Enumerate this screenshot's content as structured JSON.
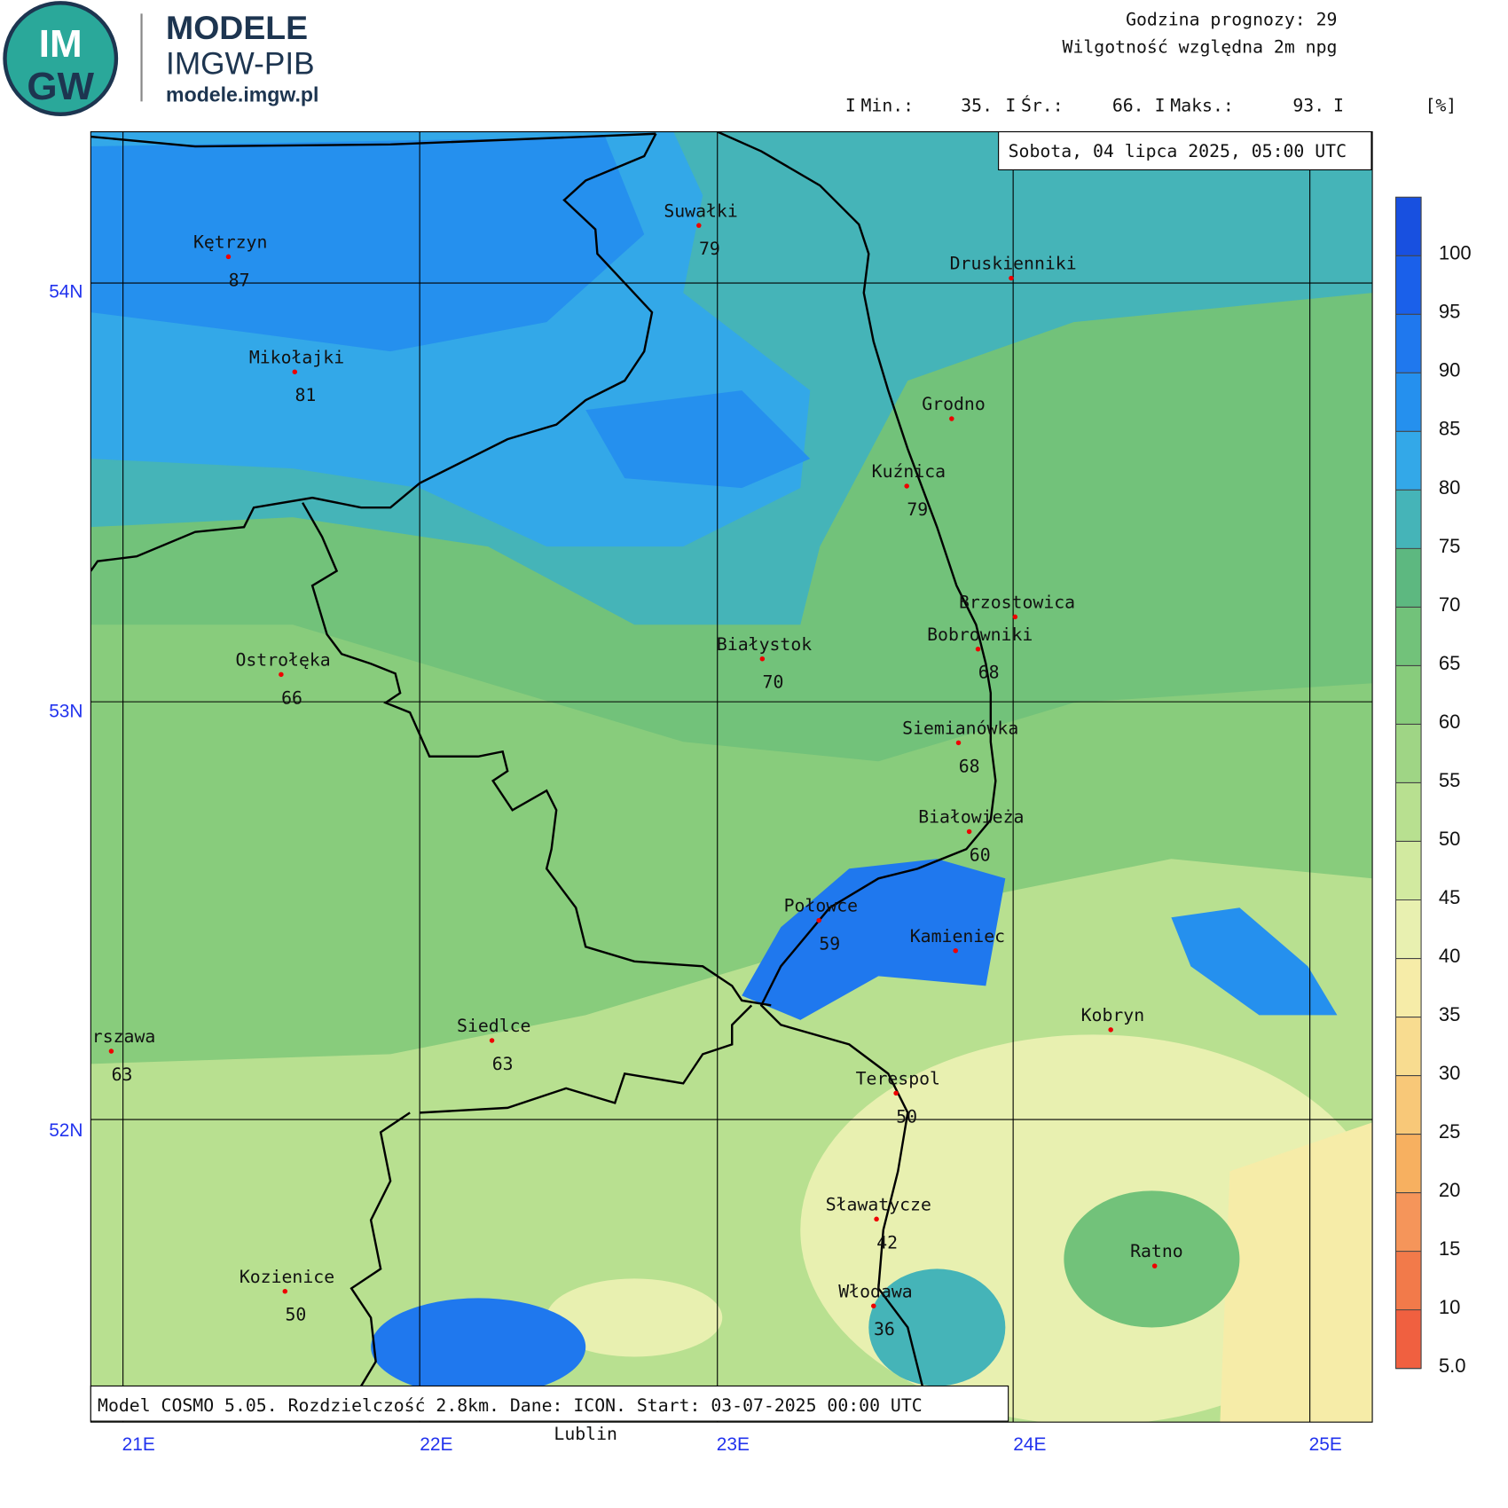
{
  "header": {
    "logo_top": "IM",
    "logo_bottom": "GW",
    "title": "MODELE",
    "subtitle": "IMGW-PIB",
    "url": "modele.imgw.pl"
  },
  "info": {
    "forecast_hour": "Godzina prognozy: 29",
    "variable": "Wilgotność względna 2m npg",
    "stats": [
      {
        "label": "Min.:",
        "value": "35."
      },
      {
        "label": "Śr.:",
        "value": "66."
      },
      {
        "label": "Maks.:",
        "value": "93."
      }
    ],
    "unit": "[%]"
  },
  "date": "Sobota, 04 lipca 2025, 05:00 UTC",
  "footer": "Model COSMO 5.05. Rozdzielczość 2.8km. Dane: ICON. Start: 03-07-2025 00:00 UTC",
  "lat_labels": [
    "54N",
    "53N",
    "52N"
  ],
  "lon_labels": [
    "21E",
    "22E",
    "23E",
    "24E",
    "25E"
  ],
  "cities": [
    {
      "name": "Kętrzyn",
      "value": 87
    },
    {
      "name": "Suwałki",
      "value": 79
    },
    {
      "name": "Druskienniki"
    },
    {
      "name": "Mikołajki",
      "value": 81
    },
    {
      "name": "Grodno"
    },
    {
      "name": "Kuźnica",
      "value": 79
    },
    {
      "name": "Brzostowica"
    },
    {
      "name": "Bobrowniki",
      "value": 68
    },
    {
      "name": "Białystok",
      "value": 70
    },
    {
      "name": "Ostrołęka",
      "value": 66
    },
    {
      "name": "Siemianówka",
      "value": 68
    },
    {
      "name": "Białowieża",
      "value": 60
    },
    {
      "name": "Połowce",
      "value": 59
    },
    {
      "name": "Kamieniec"
    },
    {
      "name": "Kobryn"
    },
    {
      "name": "Warszawa",
      "value": 63
    },
    {
      "name": "Siedlce",
      "value": 63
    },
    {
      "name": "Terespol",
      "value": 50
    },
    {
      "name": "Sławatycze",
      "value": 42
    },
    {
      "name": "Ratno"
    },
    {
      "name": "Kozienice",
      "value": 50
    },
    {
      "name": "Włodawa",
      "value": 36
    }
  ],
  "outside_label": "Lublin",
  "colorbar": {
    "ticks": [
      {
        "value": 5,
        "label": "5.0"
      },
      10,
      15,
      20,
      25,
      30,
      35,
      40,
      45,
      50,
      55,
      60,
      65,
      70,
      75,
      80,
      85,
      90,
      95,
      100
    ],
    "colors": [
      "#f06040",
      "#f27a4a",
      "#f5955a",
      "#f7b060",
      "#f8c878",
      "#f8dc90",
      "#f6eca8",
      "#e8f0b0",
      "#d2eaa0",
      "#b8e090",
      "#9fd585",
      "#88cc7c",
      "#72c27a",
      "#5db880",
      "#45b4b8",
      "#33a8e8",
      "#2590ee",
      "#1f78ee",
      "#1a60ea",
      "#1850e0"
    ]
  }
}
